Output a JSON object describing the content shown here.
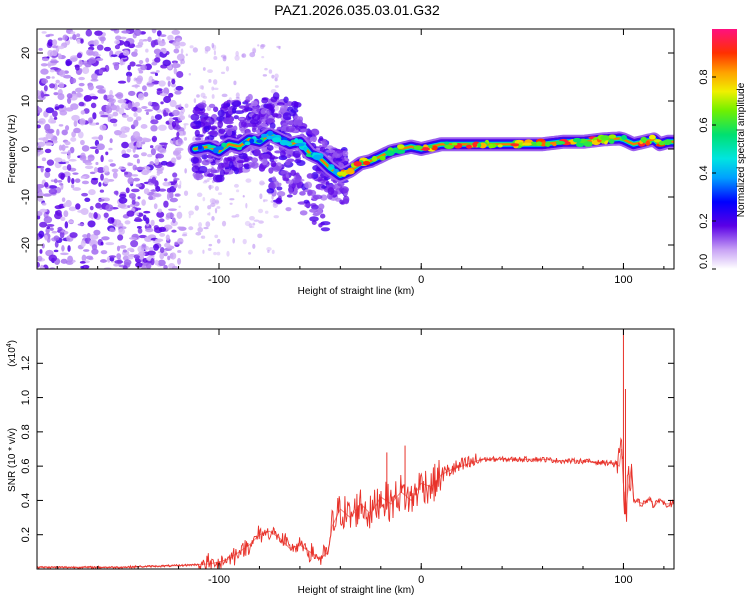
{
  "title": "PAZ1.2026.035.03.01.G32",
  "chart_data": [
    {
      "type": "heatmap",
      "name": "spectrogram",
      "xlabel": "Height of straight line (km)",
      "ylabel": "Frequency (Hz)",
      "xlim": [
        -190,
        125
      ],
      "ylim": [
        -25,
        25
      ],
      "x_ticks": [
        {
          "value": -100,
          "label": "-100"
        },
        {
          "value": 0,
          "label": "0"
        },
        {
          "value": 100,
          "label": "100"
        }
      ],
      "y_ticks": [
        {
          "value": 20,
          "label": "20"
        },
        {
          "value": 10,
          "label": "10"
        },
        {
          "value": 0,
          "label": "0"
        },
        {
          "value": -10,
          "label": "-10"
        },
        {
          "value": -20,
          "label": "-20"
        }
      ],
      "ridge": {
        "description": "dominant frequency track (Hz) vs height (km)",
        "x": [
          -112,
          -105,
          -100,
          -95,
          -90,
          -85,
          -80,
          -75,
          -70,
          -65,
          -60,
          -55,
          -50,
          -45,
          -40,
          -35,
          -30,
          -25,
          -20,
          -15,
          -10,
          -5,
          0,
          5,
          10,
          20,
          30,
          40,
          50,
          60,
          70,
          80,
          90,
          98,
          100,
          105,
          110,
          115,
          118,
          122,
          125
        ],
        "y": [
          0,
          0.5,
          -0.5,
          1,
          0.5,
          2,
          1.5,
          3,
          2,
          1,
          1.5,
          -1,
          -2,
          -4,
          -5.5,
          -4.5,
          -3,
          -2.5,
          -1.5,
          -0.5,
          0,
          0.5,
          0,
          0.5,
          1,
          1,
          1,
          1,
          1,
          1,
          1.5,
          1.5,
          2,
          2.2,
          2,
          1,
          1.5,
          2,
          1,
          1.5,
          1.5
        ]
      },
      "colorbar": {
        "label": "Normalized spectral amplitude",
        "range": [
          0.0,
          1.0
        ],
        "ticks": [
          "0.0",
          "0.2",
          "0.4",
          "0.6",
          "0.8"
        ],
        "tick_values": [
          0.0,
          0.2,
          0.4,
          0.6,
          0.8
        ]
      }
    },
    {
      "type": "line",
      "name": "snr",
      "xlabel": "Height of straight line (km)",
      "ylabel": "SNR (10 * v/v)",
      "y_scale_label": "(x10",
      "y_scale_exponent": "4",
      "xlim": [
        -190,
        125
      ],
      "ylim": [
        0,
        1.4
      ],
      "x_ticks": [
        {
          "value": -100,
          "label": "-100"
        },
        {
          "value": 0,
          "label": "0"
        },
        {
          "value": 100,
          "label": "100"
        }
      ],
      "y_ticks": [
        {
          "value": 1.2,
          "label": "1.2"
        },
        {
          "value": 1.0,
          "label": "1.0"
        },
        {
          "value": 0.8,
          "label": "0.8"
        },
        {
          "value": 0.6,
          "label": "0.6"
        },
        {
          "value": 0.4,
          "label": "0.4"
        },
        {
          "value": 0.2,
          "label": "0.2"
        }
      ],
      "color": "#e8322a",
      "series": [
        {
          "name": "SNR",
          "x": [
            -190,
            -150,
            -120,
            -105,
            -100,
            -95,
            -90,
            -85,
            -80,
            -75,
            -70,
            -65,
            -60,
            -55,
            -50,
            -46,
            -44,
            -40,
            -35,
            -30,
            -25,
            -20,
            -15,
            -10,
            -5,
            0,
            5,
            10,
            15,
            20,
            25,
            30,
            40,
            50,
            60,
            70,
            80,
            90,
            95,
            98,
            99,
            100,
            101,
            102,
            104,
            105,
            110,
            113,
            115,
            118,
            120,
            125
          ],
          "y": [
            0.01,
            0.01,
            0.02,
            0.03,
            0.04,
            0.06,
            0.1,
            0.14,
            0.2,
            0.22,
            0.18,
            0.12,
            0.14,
            0.1,
            0.06,
            0.1,
            0.25,
            0.35,
            0.3,
            0.38,
            0.32,
            0.42,
            0.38,
            0.45,
            0.4,
            0.5,
            0.48,
            0.55,
            0.58,
            0.6,
            0.62,
            0.64,
            0.64,
            0.64,
            0.64,
            0.63,
            0.63,
            0.62,
            0.62,
            0.6,
            0.7,
            0.5,
            0.32,
            0.44,
            0.6,
            0.4,
            0.38,
            0.42,
            0.36,
            0.41,
            0.38,
            0.38
          ]
        }
      ],
      "spikes": [
        {
          "x": 100,
          "y": 1.4
        },
        {
          "x": 101,
          "y": 1.05
        },
        {
          "x": -17,
          "y": 0.68
        },
        {
          "x": -8,
          "y": 0.72
        }
      ]
    }
  ]
}
